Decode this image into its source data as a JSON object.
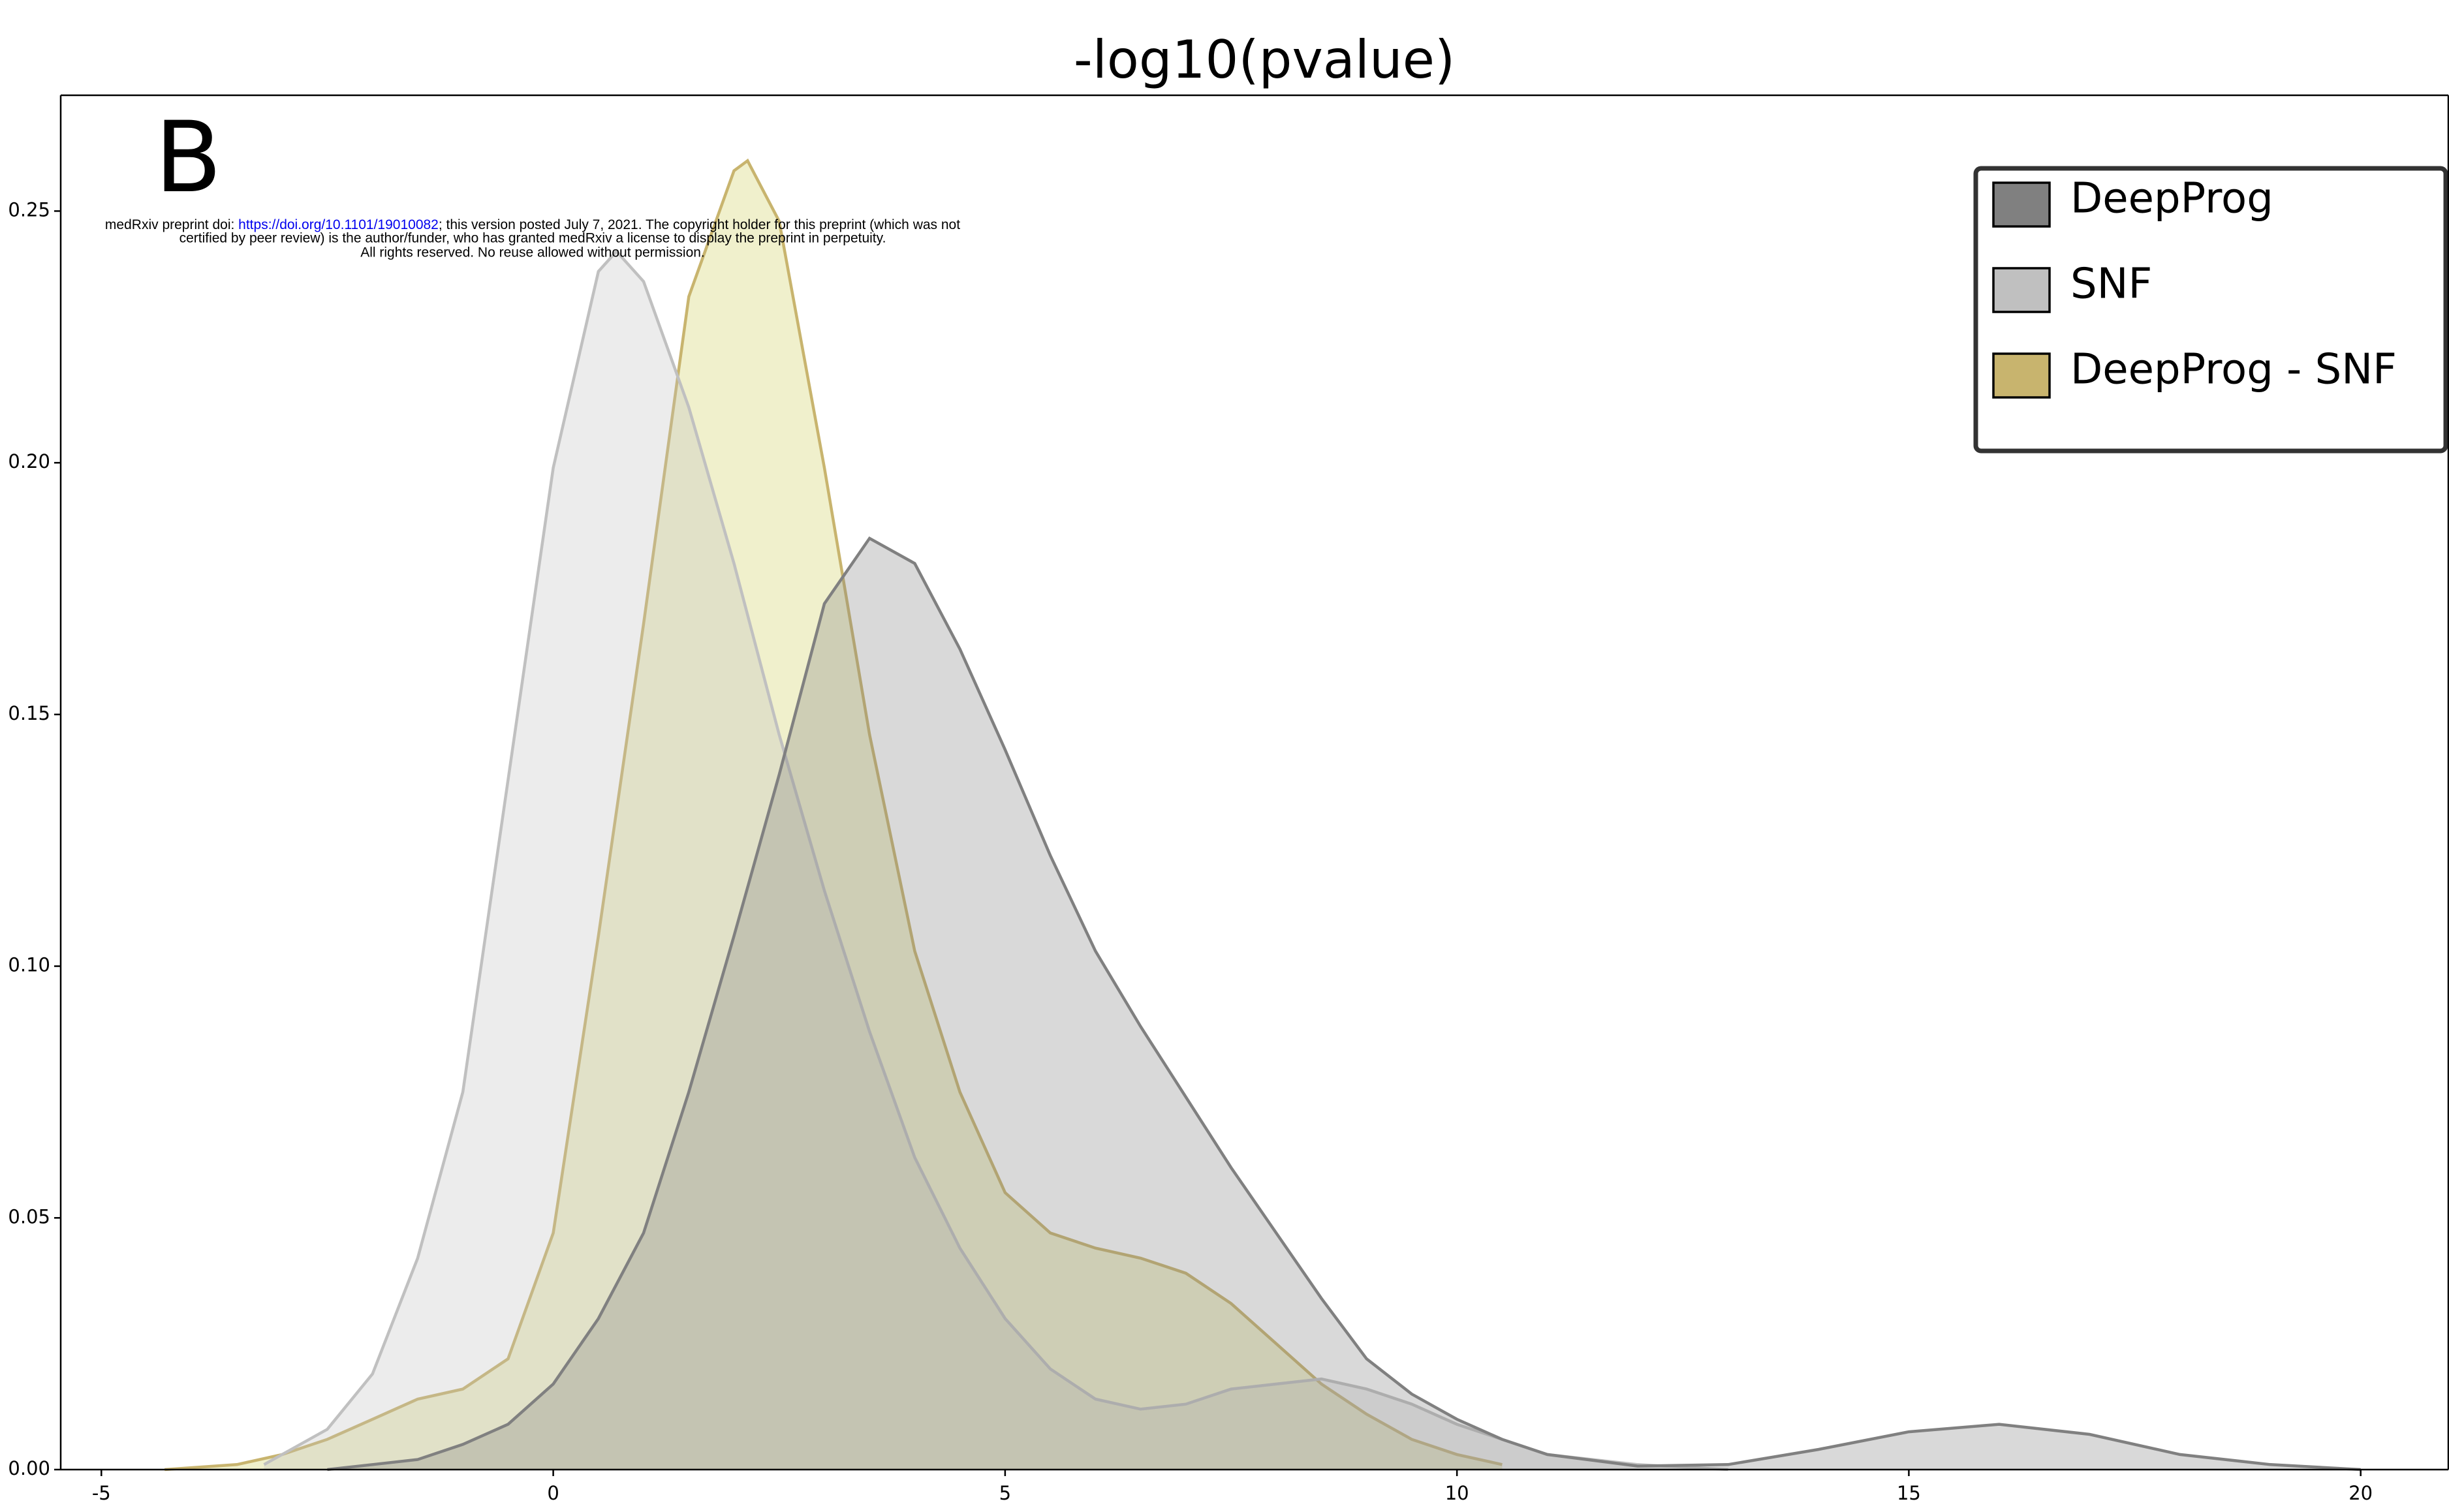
{
  "chart_data": {
    "type": "area",
    "title": "-log10(pvalue)",
    "panel_label": "B",
    "watermark": {
      "prefix": "medRxiv preprint doi: ",
      "link": "https://doi.org/10.1101/19010082",
      "suffix": "; this version posted July 7, 2021. The copyright holder for this preprint (which was not",
      "line2": "certified by peer review) is the author/funder, who has granted medRxiv a license to display the preprint in perpetuity.",
      "line3": "All rights reserved. No reuse allowed without permission."
    },
    "xlim": [
      -5.45,
      20.97
    ],
    "ylim": [
      0,
      0.273
    ],
    "xticks": [
      -5,
      0,
      5,
      10,
      15,
      20
    ],
    "yticks": [
      {
        "value": 0,
        "label": "0.00"
      },
      {
        "value": 0.05,
        "label": "0.05"
      },
      {
        "value": 0.1,
        "label": "0.10"
      },
      {
        "value": 0.15,
        "label": "0.15"
      },
      {
        "value": 0.2,
        "label": "0.20"
      },
      {
        "value": 0.25,
        "label": "0.25"
      }
    ],
    "legend": "upper right",
    "series": [
      {
        "name": "DeepProg",
        "color": "#808080",
        "fill": "#808080",
        "x": [
          -2.5,
          -2,
          -1.5,
          -1,
          -0.5,
          0,
          0.5,
          1,
          1.5,
          2,
          2.5,
          3,
          3.5,
          4,
          4.5,
          5,
          5.5,
          6,
          6.5,
          7,
          7.5,
          8,
          8.5,
          9,
          9.5,
          10,
          10.5,
          11,
          12,
          13,
          14,
          15,
          16,
          17,
          18,
          19,
          20
        ],
        "values": [
          0,
          0.001,
          0.002,
          0.005,
          0.009,
          0.017,
          0.03,
          0.047,
          0.075,
          0.106,
          0.138,
          0.172,
          0.185,
          0.18,
          0.163,
          0.143,
          0.122,
          0.103,
          0.088,
          0.074,
          0.06,
          0.047,
          0.034,
          0.022,
          0.015,
          0.01,
          0.006,
          0.003,
          0.0007,
          0.001,
          0.004,
          0.0075,
          0.009,
          0.007,
          0.003,
          0.001,
          0
        ]
      },
      {
        "name": "SNF",
        "color": "#c0c0c0",
        "fill": "#c0c0c0",
        "x": [
          -3.2,
          -2.5,
          -2,
          -1.5,
          -1,
          -0.5,
          0,
          0.5,
          0.7,
          1,
          1.5,
          2,
          2.5,
          3,
          3.5,
          4,
          4.5,
          5,
          5.5,
          6,
          6.5,
          7,
          7.5,
          8,
          8.5,
          9,
          9.5,
          10,
          10.5,
          11,
          12,
          13
        ],
        "values": [
          0.001,
          0.008,
          0.019,
          0.042,
          0.075,
          0.137,
          0.199,
          0.238,
          0.242,
          0.236,
          0.211,
          0.18,
          0.146,
          0.115,
          0.087,
          0.062,
          0.044,
          0.03,
          0.02,
          0.014,
          0.012,
          0.013,
          0.016,
          0.017,
          0.018,
          0.016,
          0.013,
          0.009,
          0.006,
          0.003,
          0.001,
          0
        ]
      },
      {
        "name": "DeepProg - SNF",
        "color": "#c8b46e",
        "fill": "#cccc55",
        "x": [
          -4.3,
          -3.5,
          -3,
          -2.5,
          -2,
          -1.5,
          -1,
          -0.5,
          0,
          0.5,
          1,
          1.5,
          2,
          2.15,
          2.5,
          3,
          3.5,
          4,
          4.5,
          5,
          5.5,
          6,
          6.5,
          7,
          7.5,
          8,
          8.5,
          9,
          9.5,
          10,
          10.5
        ],
        "values": [
          0,
          0.001,
          0.003,
          0.006,
          0.01,
          0.014,
          0.016,
          0.022,
          0.047,
          0.106,
          0.168,
          0.233,
          0.258,
          0.26,
          0.248,
          0.199,
          0.146,
          0.103,
          0.075,
          0.055,
          0.047,
          0.044,
          0.042,
          0.039,
          0.033,
          0.025,
          0.017,
          0.011,
          0.006,
          0.003,
          0.001
        ]
      }
    ]
  }
}
